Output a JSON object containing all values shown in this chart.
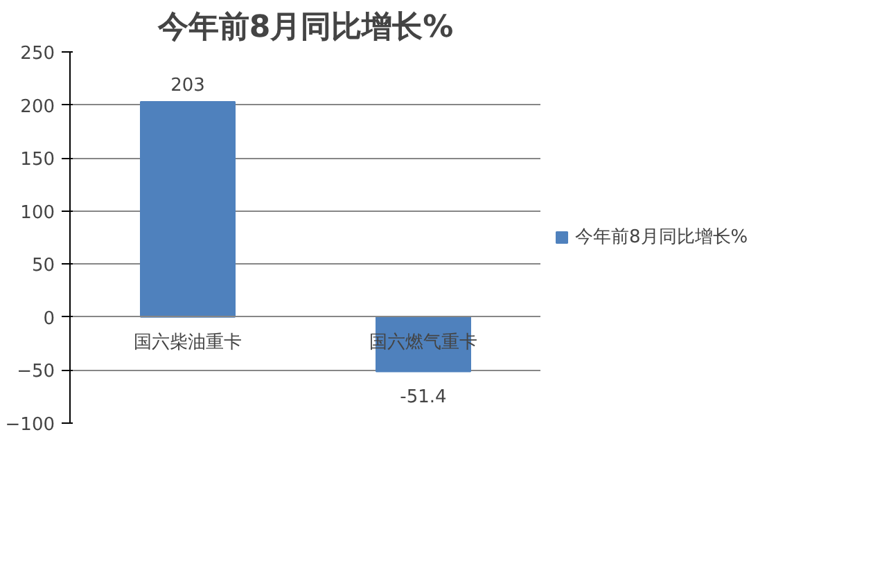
{
  "chart_data": {
    "type": "bar",
    "title": "今年前8月同比增长%",
    "categories": [
      "国六柴油重卡",
      "国六燃气重卡"
    ],
    "series": [
      {
        "name": "今年前8月同比增长%",
        "color": "#4f81bd",
        "values": [
          203,
          -51.4
        ]
      }
    ],
    "ylim": [
      -100,
      250
    ],
    "yticks": [
      -100,
      -50,
      0,
      50,
      100,
      150,
      200,
      250
    ],
    "grid": "y",
    "legend": "right",
    "data_labels": true
  }
}
